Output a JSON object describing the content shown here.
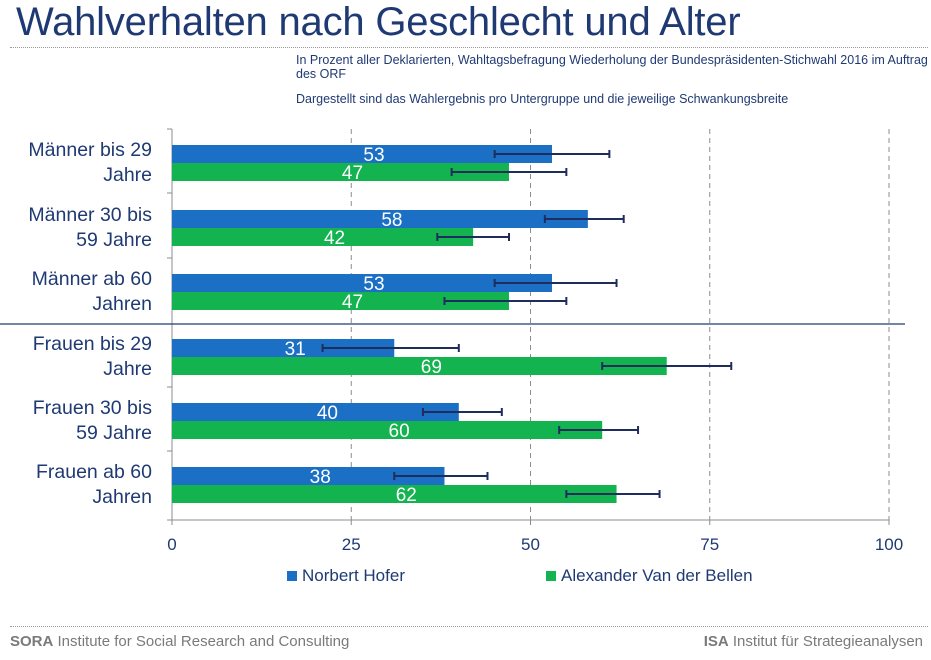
{
  "title": "Wahlverhalten nach Geschlecht und Alter",
  "subtitle_1": "In Prozent aller Deklarierten, Wahltagsbefragung Wiederholung der Bundespräsidenten-Stichwahl 2016 im Auftrag des ORF",
  "subtitle_2": "Dargestellt sind das Wahlergebnis pro Untergruppe und die jeweilige Schwankungsbreite",
  "footer": {
    "left_bold": "SORA",
    "left_text": "Institute for Social Research and Consulting",
    "right_bold": "ISA",
    "right_text": "Institut für Strategieanalysen"
  },
  "colors": {
    "hofer": "#1b6fc4",
    "vdb": "#13b34f",
    "error_bar": "#1f2d5c",
    "text": "#1f3a73"
  },
  "chart_data": {
    "type": "bar",
    "orientation": "horizontal",
    "categories": [
      [
        "Männer bis 29",
        "Jahre"
      ],
      [
        "Männer 30 bis",
        "59 Jahre"
      ],
      [
        "Männer ab 60",
        "Jahren"
      ],
      [
        "Frauen bis 29",
        "Jahre"
      ],
      [
        "Frauen 30 bis",
        "59 Jahre"
      ],
      [
        "Frauen ab 60",
        "Jahren"
      ]
    ],
    "series": [
      {
        "name": "Norbert Hofer",
        "values": [
          53,
          58,
          53,
          31,
          40,
          38
        ],
        "error_low": [
          45,
          52,
          45,
          21,
          35,
          31
        ],
        "error_high": [
          61,
          63,
          62,
          40,
          46,
          44
        ]
      },
      {
        "name": "Alexander Van der Bellen",
        "values": [
          47,
          42,
          47,
          69,
          60,
          62
        ],
        "error_low": [
          39,
          37,
          38,
          60,
          54,
          55
        ],
        "error_high": [
          55,
          47,
          55,
          78,
          65,
          68
        ]
      }
    ],
    "xlim": [
      0,
      100
    ],
    "xticks": [
      "0",
      "25",
      "50",
      "75",
      "100"
    ],
    "grid": "vertical dashed",
    "legend_position": "bottom",
    "group_separator_after": 3
  }
}
